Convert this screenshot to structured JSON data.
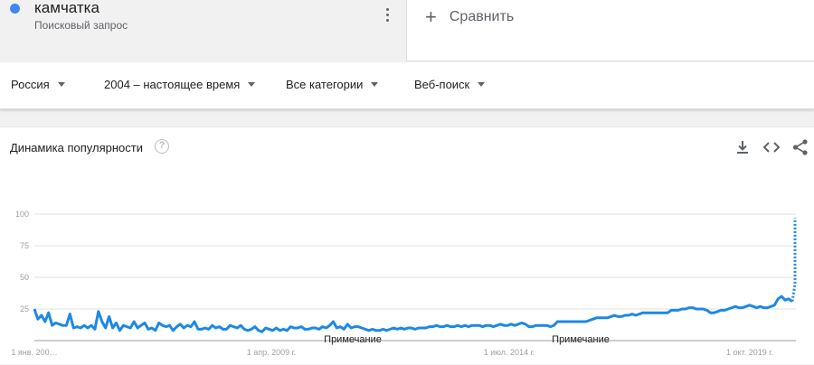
{
  "search_term": {
    "title": "камчатка",
    "subtitle": "Поисковый запрос",
    "color": "#4285f4",
    "menu_icon": "more-vert-icon"
  },
  "compare": {
    "label": "Сравнить",
    "icon": "plus-icon"
  },
  "filters": {
    "region": "Россия",
    "period": "2004 – настоящее время",
    "category": "Все категории",
    "search_type": "Веб-поиск"
  },
  "card": {
    "title": "Динамика популярности",
    "help_icon": "help-icon",
    "actions": [
      "download-icon",
      "embed-icon",
      "share-icon"
    ]
  },
  "chart_data": {
    "type": "line",
    "title": "",
    "ylim": [
      0,
      100
    ],
    "yticks": [
      100,
      75,
      50,
      25
    ],
    "xtick_labels": [
      "1 янв. 200…",
      "1 апр. 2009 г.",
      "1 июл. 2014 г.",
      "1 окт. 2019 г."
    ],
    "notes": [
      "Примечание",
      "Примечание"
    ],
    "grid": true,
    "series": [
      {
        "color": "#1e88e5",
        "values": [
          25,
          17,
          20,
          15,
          22,
          12,
          14,
          13,
          12,
          12,
          21,
          10,
          11,
          10,
          12,
          10,
          12,
          9,
          23,
          15,
          10,
          19,
          10,
          14,
          8,
          12,
          11,
          10,
          15,
          10,
          12,
          14,
          9,
          10,
          8,
          14,
          12,
          11,
          12,
          8,
          11,
          13,
          10,
          12,
          11,
          15,
          9,
          9,
          10,
          9,
          12,
          10,
          11,
          9,
          9,
          12,
          11,
          10,
          12,
          9,
          8,
          9,
          11,
          8,
          7,
          10,
          9,
          8,
          10,
          8,
          9,
          8,
          11,
          10,
          10,
          11,
          9,
          9,
          10,
          10,
          9,
          11,
          10,
          12,
          15,
          10,
          11,
          9,
          13,
          10,
          11,
          11,
          10,
          9,
          8,
          9,
          8,
          8,
          9,
          8,
          9,
          10,
          9,
          10,
          9,
          10,
          10,
          9,
          10,
          10,
          10,
          11,
          11,
          12,
          11,
          11,
          12,
          11,
          11,
          12,
          11,
          12,
          11,
          12,
          12,
          12,
          11,
          12,
          12,
          11,
          12,
          13,
          12,
          12,
          13,
          12,
          13,
          14,
          13,
          11,
          11,
          12,
          12,
          12,
          12,
          11,
          12,
          15,
          15,
          15,
          15,
          15,
          15,
          15,
          15,
          15,
          16,
          17,
          18,
          18,
          18,
          18,
          19,
          20,
          19,
          19,
          20,
          20,
          21,
          20,
          21,
          22,
          22,
          22,
          22,
          22,
          22,
          22,
          22,
          24,
          24,
          24,
          25,
          25,
          26,
          26,
          25,
          25,
          25,
          24,
          22,
          22,
          23,
          24,
          24,
          25,
          26,
          27,
          26,
          26,
          27,
          28,
          27,
          26,
          27,
          26,
          26,
          27,
          28,
          33,
          35,
          32,
          33,
          31
        ],
        "forecast": [
          31,
          45,
          60,
          75,
          88,
          97
        ]
      }
    ]
  }
}
